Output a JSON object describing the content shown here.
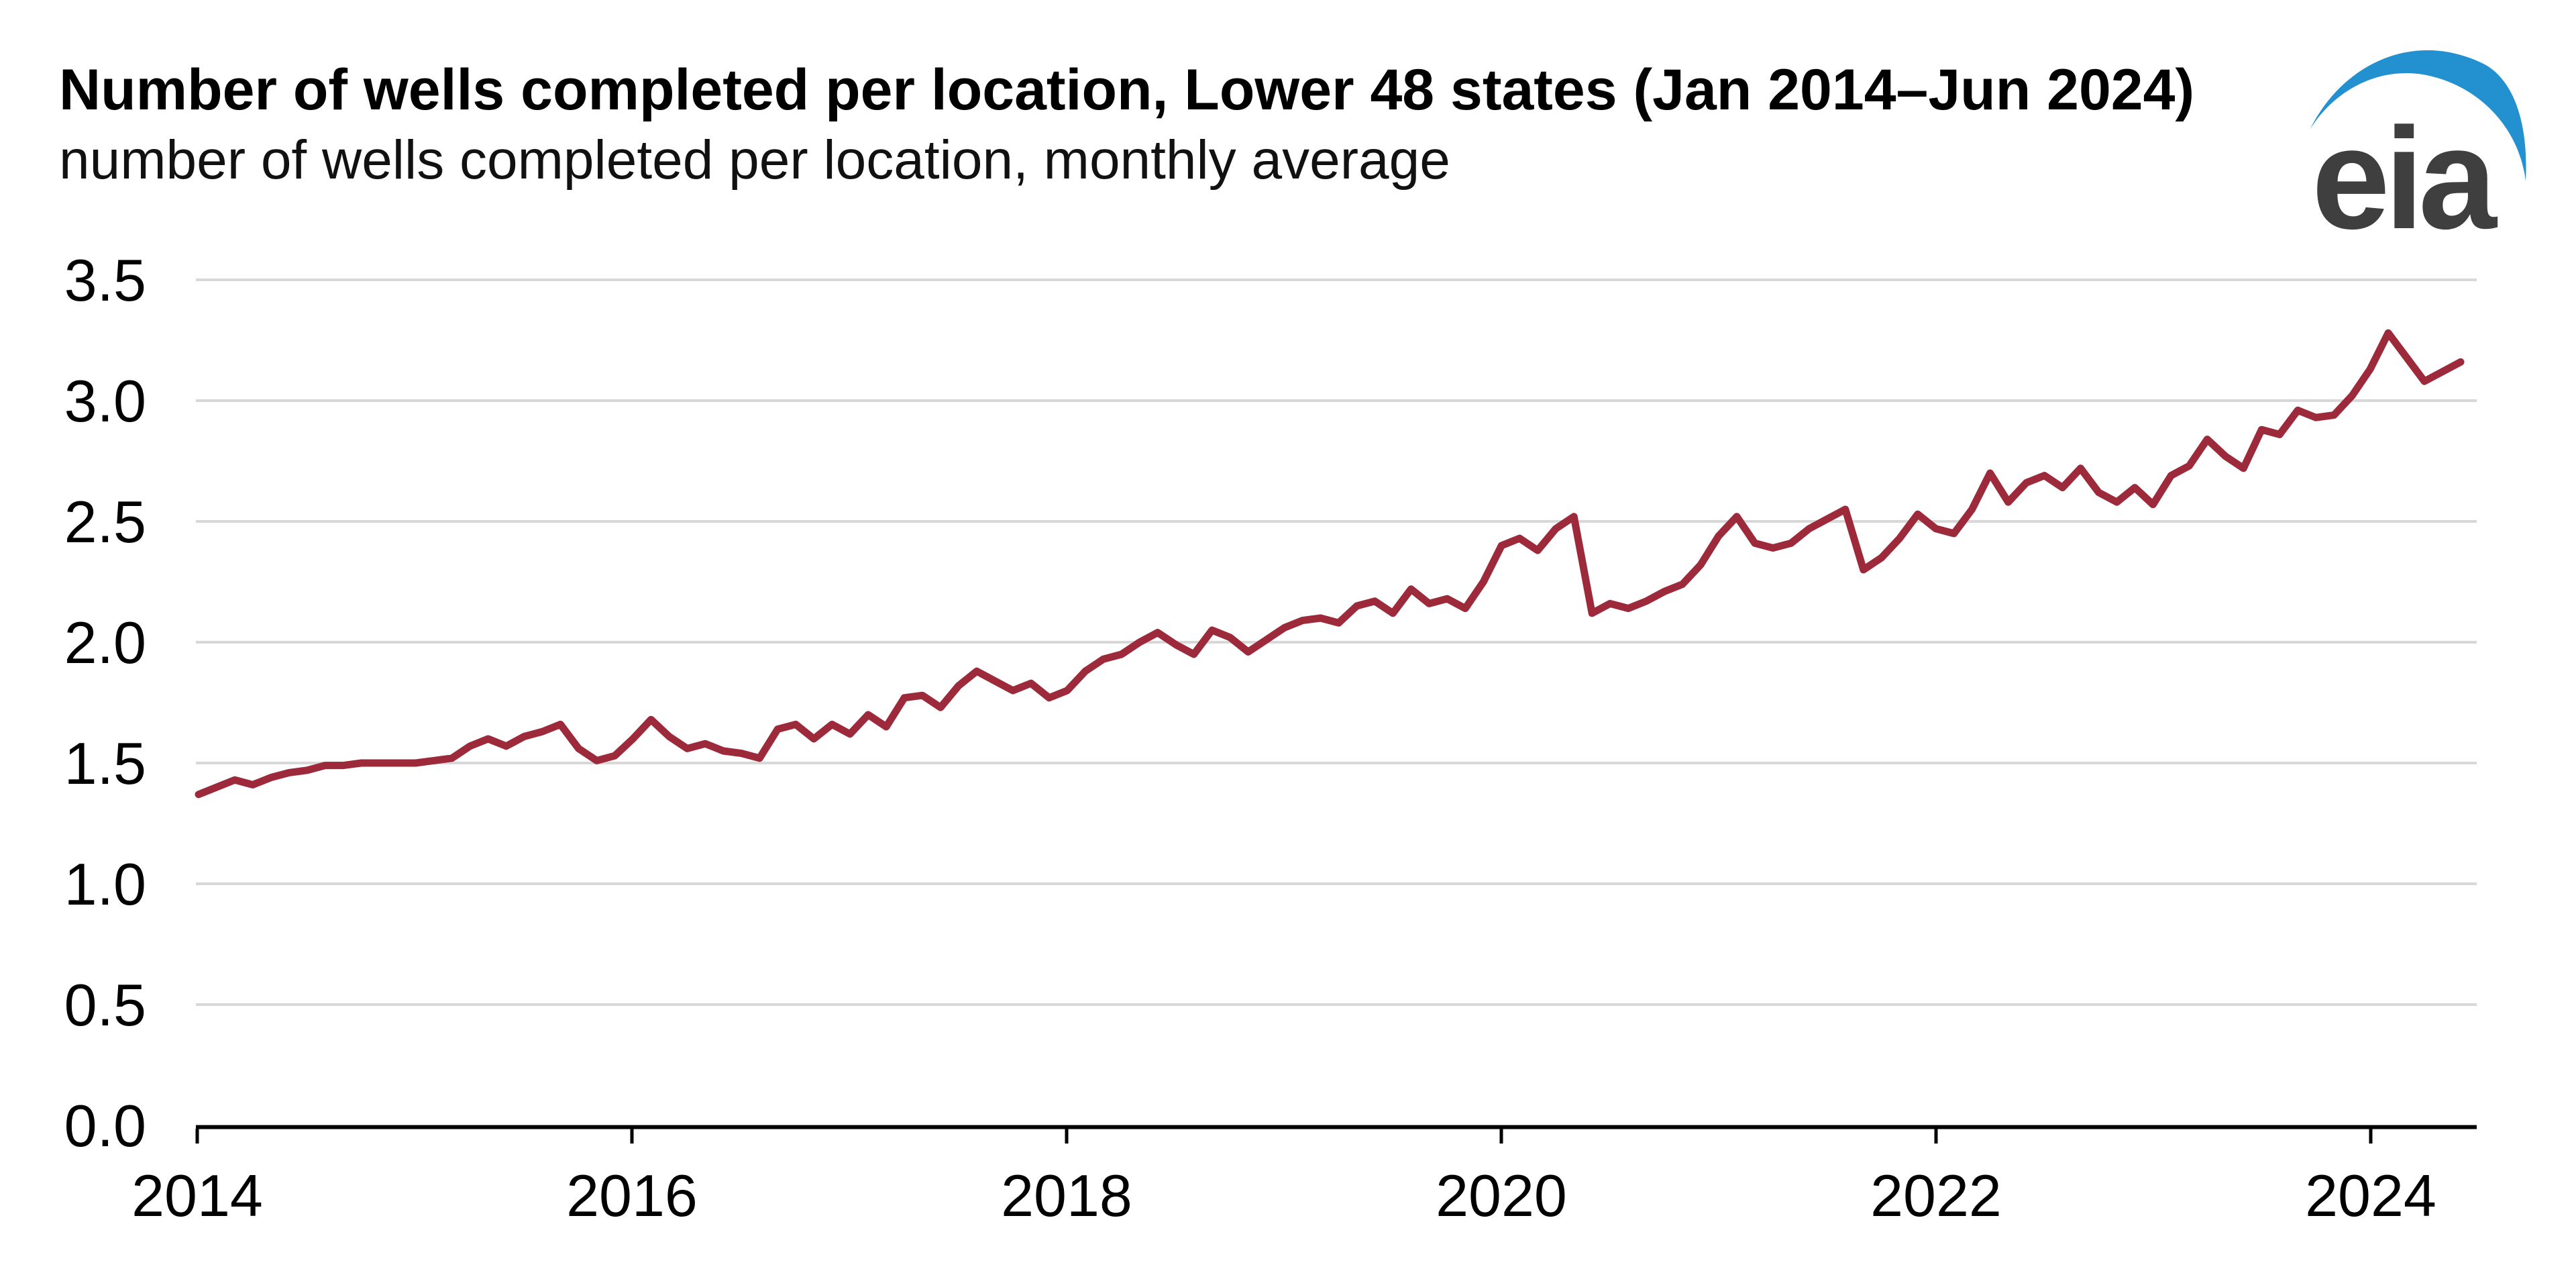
{
  "header": {
    "title": "Number of wells completed per location, Lower 48 states (Jan 2014–Jun 2024)",
    "subtitle": "number of wells completed per location, monthly average"
  },
  "logo": {
    "text": "eia",
    "text_color": "#3f3f3f",
    "swoosh_color": "#2390d0"
  },
  "chart_data": {
    "type": "line",
    "title": "Number of wells completed per location, Lower 48 states (Jan 2014–Jun 2024)",
    "ylabel": "number of wells completed per location, monthly average",
    "xlabel": "",
    "x_monthly_start": "Jan 2014",
    "x_monthly_end": "Jun 2024",
    "x_tick_labels": [
      "2014",
      "2016",
      "2018",
      "2020",
      "2022",
      "2024"
    ],
    "y_tick_labels": [
      "0.0",
      "0.5",
      "1.0",
      "1.5",
      "2.0",
      "2.5",
      "3.0",
      "3.5"
    ],
    "y_tick_values": [
      0,
      0.5,
      1,
      1.5,
      2,
      2.5,
      3,
      3.5
    ],
    "ylim": [
      0,
      3.5
    ],
    "grid": true,
    "legend": "none",
    "line_color": "#9c2a3a",
    "gridline_color": "#d8d8d8",
    "axis_color": "#000000",
    "series": [
      {
        "name": "wells completed per location, monthly average",
        "values": [
          1.37,
          1.4,
          1.43,
          1.41,
          1.44,
          1.46,
          1.47,
          1.49,
          1.49,
          1.5,
          1.5,
          1.5,
          1.5,
          1.51,
          1.52,
          1.57,
          1.6,
          1.57,
          1.61,
          1.63,
          1.66,
          1.56,
          1.51,
          1.53,
          1.6,
          1.68,
          1.61,
          1.56,
          1.58,
          1.55,
          1.54,
          1.52,
          1.64,
          1.66,
          1.6,
          1.66,
          1.62,
          1.7,
          1.65,
          1.77,
          1.78,
          1.73,
          1.82,
          1.88,
          1.84,
          1.8,
          1.83,
          1.77,
          1.8,
          1.88,
          1.93,
          1.95,
          2.0,
          2.04,
          1.99,
          1.95,
          2.05,
          2.02,
          1.96,
          2.01,
          2.06,
          2.09,
          2.1,
          2.08,
          2.15,
          2.17,
          2.12,
          2.22,
          2.16,
          2.18,
          2.14,
          2.25,
          2.4,
          2.43,
          2.38,
          2.47,
          2.52,
          2.12,
          2.16,
          2.14,
          2.17,
          2.21,
          2.24,
          2.32,
          2.44,
          2.52,
          2.41,
          2.39,
          2.41,
          2.47,
          2.51,
          2.55,
          2.3,
          2.35,
          2.43,
          2.53,
          2.47,
          2.45,
          2.55,
          2.7,
          2.58,
          2.66,
          2.69,
          2.64,
          2.72,
          2.62,
          2.58,
          2.64,
          2.57,
          2.69,
          2.73,
          2.84,
          2.77,
          2.72,
          2.88,
          2.86,
          2.96,
          2.93,
          2.94,
          3.02,
          3.13,
          3.28,
          3.18,
          3.08,
          3.12,
          3.16
        ]
      }
    ]
  }
}
